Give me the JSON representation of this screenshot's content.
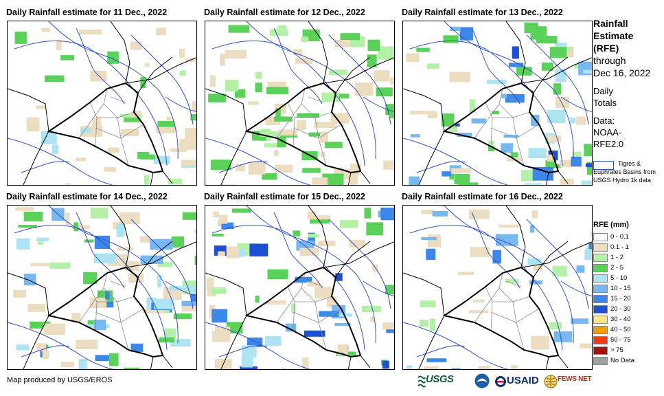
{
  "panels": [
    {
      "title": "Daily Rainfall estimate for 11 Dec., 2022"
    },
    {
      "title": "Daily Rainfall estimate for 12 Dec., 2022"
    },
    {
      "title": "Daily Rainfall estimate for 13 Dec., 2022"
    },
    {
      "title": "Daily Rainfall estimate for 14 Dec., 2022"
    },
    {
      "title": "Daily Rainfall estimate for 15 Dec., 2022"
    },
    {
      "title": "Daily Rainfall estimate for 16 Dec., 2022"
    }
  ],
  "sidebar": {
    "title_lines": [
      "Rainfall",
      "Estimate",
      "(RFE)"
    ],
    "through_lines": [
      "through",
      "Dec 16, 2022"
    ],
    "totals_lines": [
      "Daily",
      "Totals"
    ],
    "data_lines": [
      "Data:",
      "NOAA-",
      "RFE2.0"
    ]
  },
  "basin_legend": {
    "text": "Tigres & Euphrates Basins from USGS Hydro 1k data",
    "color": "#3050c8"
  },
  "rfe_legend": {
    "title": "RFE (mm)",
    "classes": [
      {
        "label": "0 - 0.1",
        "color": "#ffffff"
      },
      {
        "label": "0.1 - 1",
        "color": "#ecdcc0"
      },
      {
        "label": "1 - 2",
        "color": "#b4f0a8"
      },
      {
        "label": "2 - 5",
        "color": "#5ad25a"
      },
      {
        "label": "5 - 10",
        "color": "#aee4f2"
      },
      {
        "label": "10 - 15",
        "color": "#78b8f0"
      },
      {
        "label": "15 - 20",
        "color": "#3c88e8"
      },
      {
        "label": "20 - 30",
        "color": "#1e4ed2"
      },
      {
        "label": "30 - 40",
        "color": "#fae68c"
      },
      {
        "label": "40 - 50",
        "color": "#f0a000"
      },
      {
        "label": "50 - 75",
        "color": "#f03c14"
      },
      {
        "label": "> 75",
        "color": "#a0140a"
      },
      {
        "label": "No Data",
        "color": "#a0a0a0"
      }
    ]
  },
  "credit": "Map produced by USGS/EROS",
  "logos": {
    "usgs": "USGS",
    "usaid": "USAID",
    "fews": "FEWS NET"
  }
}
